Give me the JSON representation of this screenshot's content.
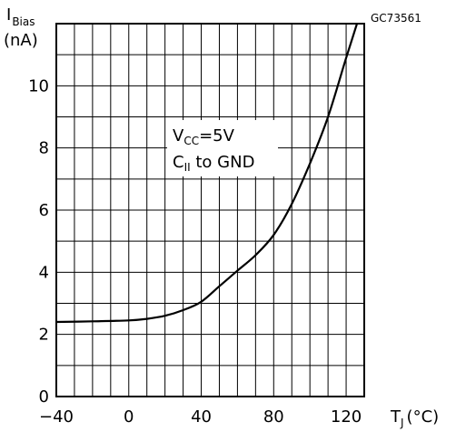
{
  "figure_code": "GC73561",
  "chart_data": {
    "type": "line",
    "ylabel_main": "I",
    "ylabel_sub": "Bias",
    "ylabel_unit": "(nA)",
    "xlabel_main": "T",
    "xlabel_sub": "J",
    "xlabel_unit": "(°C)",
    "xlim": [
      -40,
      130
    ],
    "ylim": [
      0,
      12
    ],
    "x_ticks": [
      -40,
      0,
      40,
      80,
      120
    ],
    "y_ticks": [
      0,
      2,
      4,
      6,
      8,
      10
    ],
    "x_grid_step": 10,
    "y_grid_step": 1,
    "grid": true,
    "annotation": {
      "line1_main": "V",
      "line1_sub": "CC",
      "line1_rest": "=5V",
      "line2_main": "C",
      "line2_sub": "II",
      "line2_rest": " to  GND"
    },
    "series": [
      {
        "x": [
          -40,
          -20,
          0,
          10,
          20,
          30,
          40,
          50,
          60,
          70,
          80,
          90,
          100,
          110,
          120,
          126
        ],
        "y": [
          2.4,
          2.42,
          2.45,
          2.5,
          2.6,
          2.78,
          3.05,
          3.55,
          4.05,
          4.55,
          5.2,
          6.2,
          7.5,
          9.0,
          10.9,
          12.0
        ]
      }
    ]
  }
}
